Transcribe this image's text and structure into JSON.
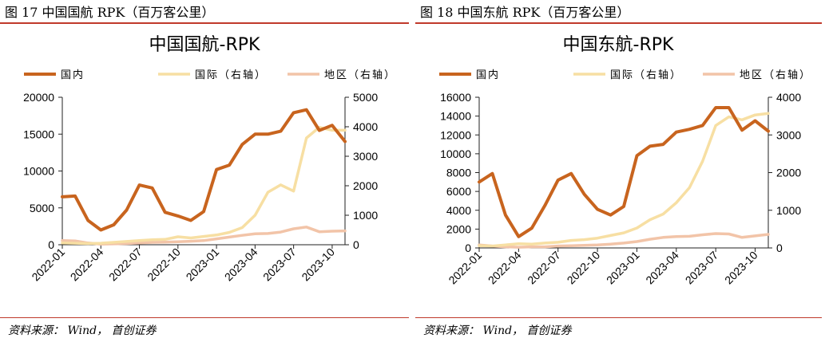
{
  "figures": [
    {
      "fig_title": "图 17 中国国航 RPK（百万客公里）",
      "source": "资料来源： Wind， 首创证券",
      "chart_data": {
        "type": "line",
        "title": "中国国航-RPK",
        "x": [
          "2022-01",
          "2022-02",
          "2022-03",
          "2022-04",
          "2022-05",
          "2022-06",
          "2022-07",
          "2022-08",
          "2022-09",
          "2022-10",
          "2022-11",
          "2022-12",
          "2023-01",
          "2023-02",
          "2023-03",
          "2023-04",
          "2023-05",
          "2023-06",
          "2023-07",
          "2023-08",
          "2023-09",
          "2023-10",
          "2023-11"
        ],
        "x_tick_labels": [
          "2022-01",
          "2022-04",
          "2022-07",
          "2022-10",
          "2023-01",
          "2023-04",
          "2023-07",
          "2023-10"
        ],
        "ylim_left": [
          0,
          20000
        ],
        "y_ticks_left": [
          "0",
          "5000",
          "10000",
          "15000",
          "20000"
        ],
        "ylim_right": [
          0,
          5000
        ],
        "y_ticks_right": [
          "0",
          "1000",
          "2000",
          "3000",
          "4000",
          "5000"
        ],
        "legend_position": "top",
        "grid": false,
        "series": [
          {
            "name": "国内",
            "axis": "left",
            "color": "#c8641e",
            "width": 4,
            "values": [
              6500,
              6600,
              3300,
              2000,
              2700,
              4700,
              8100,
              7700,
              4400,
              3900,
              3300,
              4500,
              10200,
              10800,
              13600,
              15000,
              15000,
              15400,
              17900,
              18300,
              15500,
              16200,
              14000
            ]
          },
          {
            "name": "国际（右轴）",
            "axis": "right",
            "color": "#f7dfa3",
            "width": 3.5,
            "values": [
              60,
              50,
              40,
              50,
              80,
              110,
              140,
              170,
              180,
              270,
              230,
              280,
              330,
              420,
              580,
              1000,
              1780,
              2030,
              1820,
              3620,
              3980,
              3880,
              3880
            ]
          },
          {
            "name": "地区（右轴）",
            "axis": "right",
            "color": "#f2c4a8",
            "width": 3.5,
            "values": [
              140,
              130,
              60,
              20,
              30,
              40,
              60,
              80,
              90,
              100,
              120,
              140,
              200,
              260,
              320,
              370,
              380,
              430,
              540,
              600,
              440,
              460,
              470
            ]
          }
        ]
      }
    },
    {
      "fig_title": "图 18 中国东航 RPK（百万客公里）",
      "source": "资料来源： Wind， 首创证券",
      "chart_data": {
        "type": "line",
        "title": "中国东航-RPK",
        "x": [
          "2022-01",
          "2022-02",
          "2022-03",
          "2022-04",
          "2022-05",
          "2022-06",
          "2022-07",
          "2022-08",
          "2022-09",
          "2022-10",
          "2022-11",
          "2022-12",
          "2023-01",
          "2023-02",
          "2023-03",
          "2023-04",
          "2023-05",
          "2023-06",
          "2023-07",
          "2023-08",
          "2023-09",
          "2023-10",
          "2023-11"
        ],
        "x_tick_labels": [
          "2022-01",
          "2022-04",
          "2022-07",
          "2022-10",
          "2023-01",
          "2023-04",
          "2023-07",
          "2023-10"
        ],
        "ylim_left": [
          0,
          16000
        ],
        "y_ticks_left": [
          "0",
          "2000",
          "4000",
          "6000",
          "8000",
          "10000",
          "12000",
          "14000",
          "16000"
        ],
        "ylim_right": [
          0,
          4000
        ],
        "y_ticks_right": [
          "0",
          "1000",
          "2000",
          "3000",
          "4000"
        ],
        "legend_position": "top",
        "grid": false,
        "series": [
          {
            "name": "国内",
            "axis": "left",
            "color": "#c8641e",
            "width": 4,
            "values": [
              7000,
              7900,
              3500,
              1200,
              2100,
              4500,
              7200,
              7900,
              5700,
              4100,
              3500,
              4400,
              9800,
              10800,
              11000,
              12300,
              12600,
              13000,
              14900,
              14900,
              12500,
              13500,
              12400
            ]
          },
          {
            "name": "国际（右轴）",
            "axis": "right",
            "color": "#f7dfa3",
            "width": 3.5,
            "values": [
              60,
              50,
              80,
              110,
              100,
              130,
              150,
              200,
              220,
              260,
              330,
              400,
              530,
              750,
              900,
              1200,
              1600,
              2300,
              3250,
              3480,
              3400,
              3530,
              3570
            ]
          },
          {
            "name": "地区（右轴）",
            "axis": "right",
            "color": "#f2c4a8",
            "width": 3.5,
            "values": [
              80,
              50,
              30,
              20,
              30,
              30,
              50,
              60,
              70,
              80,
              100,
              130,
              170,
              230,
              280,
              300,
              310,
              350,
              380,
              370,
              280,
              320,
              360
            ]
          }
        ]
      }
    }
  ]
}
